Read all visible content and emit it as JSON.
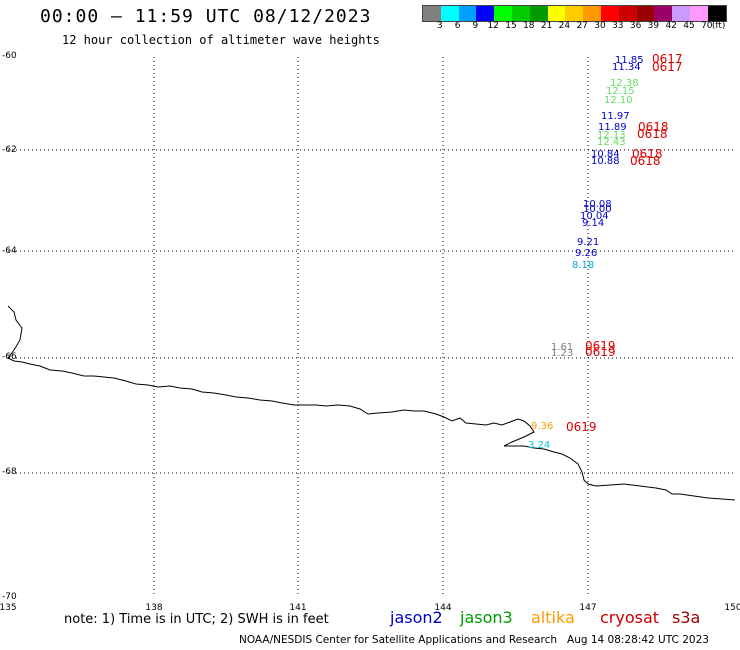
{
  "header": {
    "title": "00:00 – 11:59 UTC 08/12/2023",
    "subtitle": "12 hour collection of altimeter wave heights"
  },
  "color_scale": {
    "colors": [
      "#808080",
      "#00ffff",
      "#00a0ff",
      "#0000ff",
      "#00ff00",
      "#00cc00",
      "#009900",
      "#ffff00",
      "#ffcc00",
      "#ff9900",
      "#ff0000",
      "#cc0000",
      "#990000",
      "#9a0066",
      "#cc99ff",
      "#ff99ff",
      "#000000"
    ],
    "labels": [
      "3",
      "6",
      "9",
      "12",
      "15",
      "18",
      "21",
      "24",
      "27",
      "30",
      "33",
      "36",
      "39",
      "42",
      "45",
      "70",
      "(ft)"
    ]
  },
  "axes": {
    "lon_labels": [
      "135",
      "138",
      "141",
      "144",
      "147",
      "150"
    ],
    "lat_labels": [
      "-60",
      "-62",
      "-64",
      "-66",
      "-68",
      "-70"
    ]
  },
  "observations": [
    {
      "value": "11.85",
      "color": "#0000cc"
    },
    {
      "value": "11.34",
      "color": "#0000cc"
    },
    {
      "value": "12.38",
      "color": "#66dd66"
    },
    {
      "value": "12.15",
      "color": "#66dd66"
    },
    {
      "value": "12.10",
      "color": "#66dd66"
    },
    {
      "value": "11.97",
      "color": "#0000cc"
    },
    {
      "value": "11.89",
      "color": "#0000cc"
    },
    {
      "value": "12.13",
      "color": "#66dd66"
    },
    {
      "value": "12.43",
      "color": "#66dd66"
    },
    {
      "value": "10.84",
      "color": "#0000cc"
    },
    {
      "value": "10.88",
      "color": "#0000cc"
    },
    {
      "value": "10.08",
      "color": "#0000cc"
    },
    {
      "value": "10.00",
      "color": "#0000cc"
    },
    {
      "value": "10.04",
      "color": "#0000cc"
    },
    {
      "value": "9.14",
      "color": "#0000cc"
    },
    {
      "value": "9.21",
      "color": "#0000cc"
    },
    {
      "value": "9.26",
      "color": "#0000cc"
    },
    {
      "value": "8.18",
      "color": "#00aadd"
    },
    {
      "value": "1.61",
      "color": "#808080"
    },
    {
      "value": "1.23",
      "color": "#808080"
    },
    {
      "value": "9.36",
      "color": "#ff9900"
    },
    {
      "value": "3.24",
      "color": "#00ccdd"
    }
  ],
  "time_labels": [
    {
      "value": "0617",
      "color": "#dd0000"
    },
    {
      "value": "0617",
      "color": "#dd0000"
    },
    {
      "value": "0618",
      "color": "#dd0000"
    },
    {
      "value": "0618",
      "color": "#dd0000"
    },
    {
      "value": "0618",
      "color": "#dd0000"
    },
    {
      "value": "0618",
      "color": "#dd0000"
    },
    {
      "value": "0619",
      "color": "#dd0000"
    },
    {
      "value": "0619",
      "color": "#dd0000"
    },
    {
      "value": "0619",
      "color": "#dd0000"
    }
  ],
  "footer": {
    "note": "note: 1) Time is in UTC; 2) SWH is in feet",
    "credit": "NOAA/NESDIS Center for Satellite Applications and Research",
    "timestamp": "Aug 14 08:28:42 UTC 2023"
  },
  "legend": [
    {
      "name": "jason2",
      "color": "#0000cc"
    },
    {
      "name": "jason3",
      "color": "#009900"
    },
    {
      "name": "altika",
      "color": "#ff9900"
    },
    {
      "name": "cryosat",
      "color": "#cc0000"
    },
    {
      "name": "s3a",
      "color": "#990000"
    }
  ]
}
